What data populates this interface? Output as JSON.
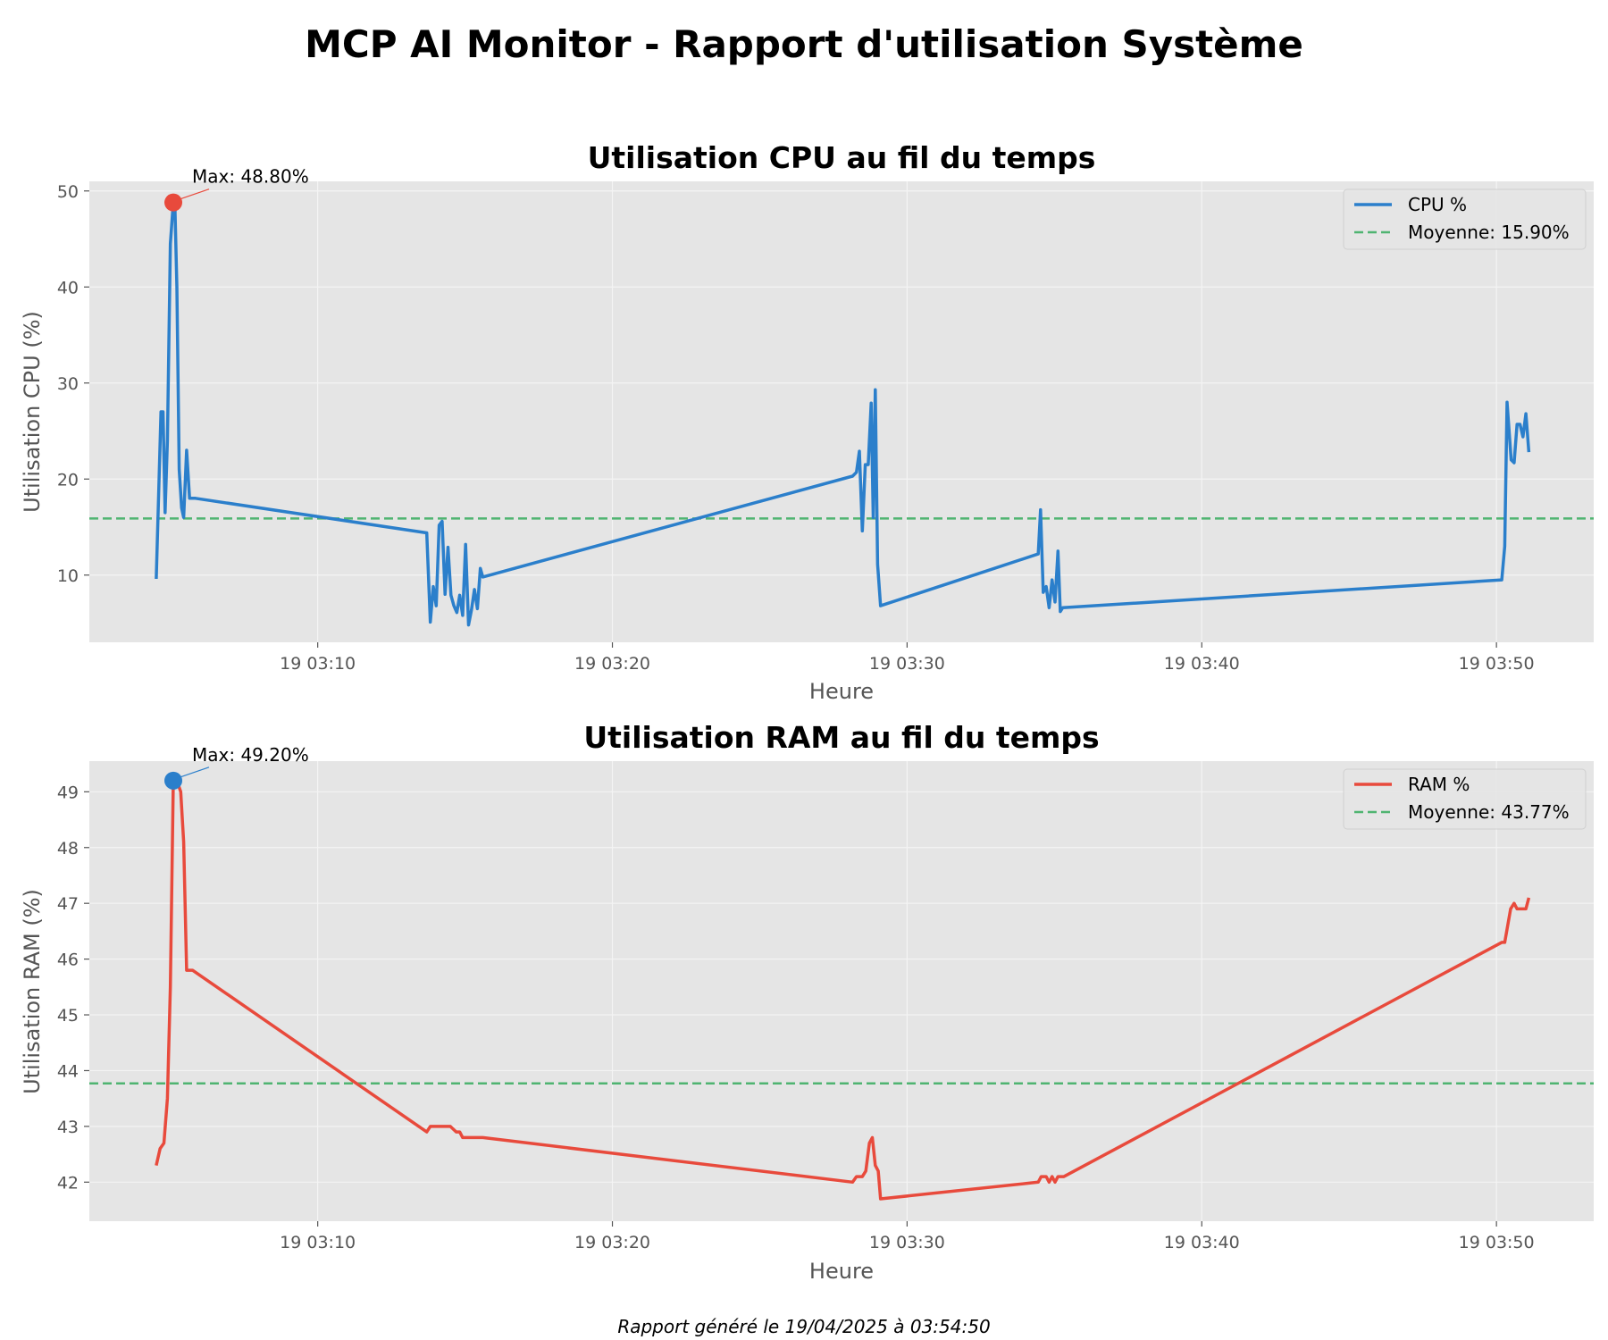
{
  "report": {
    "title": "MCP AI Monitor - Rapport d'utilisation Système",
    "footer": "Rapport généré le 19/04/2025 à 03:54:50"
  },
  "chart_data": [
    {
      "id": "cpu",
      "type": "line",
      "title": "Utilisation CPU au fil du temps",
      "xlabel": "Heure",
      "ylabel": "Utilisation CPU (%)",
      "x_unit": "minutes after 19 03:00",
      "xlim": [
        2.25,
        53.3
      ],
      "ylim": [
        3,
        51
      ],
      "xticks": [
        {
          "value": 10,
          "label": "19 03:10"
        },
        {
          "value": 20,
          "label": "19 03:20"
        },
        {
          "value": 30,
          "label": "19 03:30"
        },
        {
          "value": 40,
          "label": "19 03:40"
        },
        {
          "value": 50,
          "label": "19 03:50"
        }
      ],
      "yticks": [
        {
          "value": 10,
          "label": "10"
        },
        {
          "value": 20,
          "label": "20"
        },
        {
          "value": 30,
          "label": "30"
        },
        {
          "value": 40,
          "label": "40"
        },
        {
          "value": 50,
          "label": "50"
        }
      ],
      "grid": true,
      "legend_position": "top-right",
      "colors": {
        "line": "#2b7fcb",
        "mean": "#4fb471",
        "marker": "#e84a3c",
        "background": "#e5e5e5",
        "grid": "#f4f4f4"
      },
      "series": [
        {
          "name": "CPU %",
          "x": [
            4.52,
            4.68,
            4.75,
            4.82,
            4.9,
            5.0,
            5.1,
            5.15,
            5.22,
            5.3,
            5.38,
            5.45,
            5.55,
            5.65,
            5.75,
            5.85,
            13.7,
            13.82,
            13.92,
            14.02,
            14.12,
            14.22,
            14.32,
            14.42,
            14.52,
            14.62,
            14.72,
            14.82,
            14.92,
            15.02,
            15.12,
            15.22,
            15.32,
            15.42,
            15.52,
            15.6,
            28.15,
            28.28,
            28.38,
            28.48,
            28.58,
            28.68,
            28.78,
            28.85,
            28.92,
            29.0,
            29.1,
            34.45,
            34.53,
            34.62,
            34.72,
            34.82,
            34.92,
            35.02,
            35.12,
            35.2,
            35.28,
            50.18,
            50.28,
            50.36,
            50.5,
            50.6,
            50.7,
            50.8,
            50.9,
            51.0,
            51.1
          ],
          "y": [
            9.6,
            27.0,
            27.0,
            16.5,
            24.0,
            44.5,
            48.8,
            48.8,
            40.0,
            21.0,
            17.0,
            16.0,
            23.0,
            18.0,
            18.0,
            18.0,
            14.4,
            5.1,
            8.8,
            6.8,
            15.2,
            15.6,
            8.0,
            12.9,
            7.9,
            6.8,
            6.1,
            7.9,
            5.8,
            13.2,
            4.8,
            6.4,
            8.5,
            6.5,
            10.7,
            9.8,
            20.3,
            20.7,
            22.9,
            14.6,
            21.5,
            21.5,
            27.9,
            16.0,
            29.3,
            11.1,
            6.8,
            12.2,
            16.8,
            8.2,
            8.8,
            6.6,
            9.5,
            7.2,
            12.5,
            6.2,
            6.6,
            9.5,
            13.0,
            28.0,
            22.0,
            21.7,
            25.7,
            25.7,
            24.4,
            26.8,
            22.8
          ]
        },
        {
          "name": "Moyenne: 15.90%",
          "style": "dashed",
          "value": 15.9
        }
      ],
      "annotations": [
        {
          "text": "Max: 48.80%",
          "x": 5.1,
          "y": 48.8
        }
      ]
    },
    {
      "id": "ram",
      "type": "line",
      "title": "Utilisation RAM au fil du temps",
      "xlabel": "Heure",
      "ylabel": "Utilisation RAM (%)",
      "x_unit": "minutes after 19 03:00",
      "xlim": [
        2.25,
        53.3
      ],
      "ylim": [
        41.3,
        49.55
      ],
      "xticks": [
        {
          "value": 10,
          "label": "19 03:10"
        },
        {
          "value": 20,
          "label": "19 03:20"
        },
        {
          "value": 30,
          "label": "19 03:30"
        },
        {
          "value": 40,
          "label": "19 03:40"
        },
        {
          "value": 50,
          "label": "19 03:50"
        }
      ],
      "yticks": [
        {
          "value": 42,
          "label": "42"
        },
        {
          "value": 43,
          "label": "43"
        },
        {
          "value": 44,
          "label": "44"
        },
        {
          "value": 45,
          "label": "45"
        },
        {
          "value": 46,
          "label": "46"
        },
        {
          "value": 47,
          "label": "47"
        },
        {
          "value": 48,
          "label": "48"
        },
        {
          "value": 49,
          "label": "49"
        }
      ],
      "grid": true,
      "legend_position": "top-right",
      "colors": {
        "line": "#e84a3c",
        "mean": "#4fb471",
        "marker": "#2b7fcb",
        "background": "#e5e5e5",
        "grid": "#f4f4f4"
      },
      "series": [
        {
          "name": "RAM %",
          "x": [
            4.52,
            4.65,
            4.78,
            4.9,
            5.0,
            5.1,
            5.22,
            5.35,
            5.45,
            5.55,
            5.65,
            5.75,
            13.7,
            13.82,
            14.5,
            14.7,
            14.82,
            14.92,
            15.5,
            15.6,
            28.15,
            28.28,
            28.48,
            28.6,
            28.72,
            28.82,
            28.92,
            29.02,
            29.1,
            34.45,
            34.55,
            34.72,
            34.82,
            34.92,
            35.02,
            35.12,
            35.22,
            35.32,
            50.18,
            50.28,
            50.48,
            50.6,
            50.7,
            50.8,
            50.9,
            51.0,
            51.1
          ],
          "y": [
            42.3,
            42.6,
            42.7,
            43.5,
            45.5,
            49.2,
            49.2,
            49.0,
            48.1,
            45.8,
            45.8,
            45.8,
            42.9,
            43.0,
            43.0,
            42.9,
            42.9,
            42.8,
            42.8,
            42.8,
            42.0,
            42.1,
            42.1,
            42.2,
            42.7,
            42.8,
            42.3,
            42.2,
            41.7,
            42.0,
            42.1,
            42.1,
            42.0,
            42.1,
            42.0,
            42.1,
            42.1,
            42.1,
            46.3,
            46.3,
            46.9,
            47.0,
            46.9,
            46.9,
            46.9,
            46.9,
            47.1
          ]
        },
        {
          "name": "Moyenne: 43.77%",
          "style": "dashed",
          "value": 43.77
        }
      ],
      "annotations": [
        {
          "text": "Max: 49.20%",
          "x": 5.1,
          "y": 49.2
        }
      ]
    }
  ]
}
